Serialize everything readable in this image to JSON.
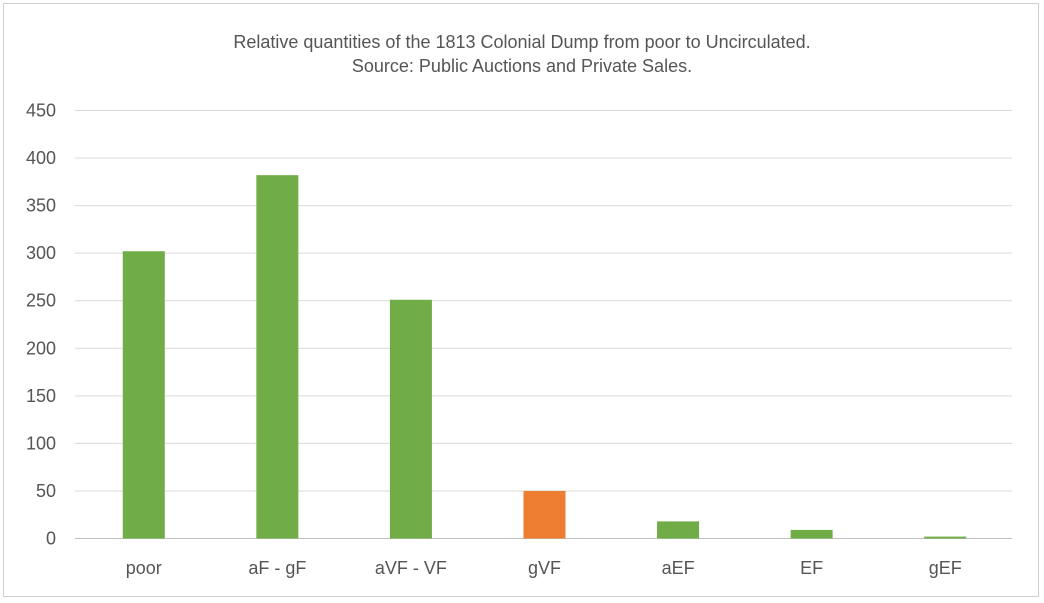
{
  "chart_data": {
    "type": "bar",
    "title": "Relative quantities of the 1813 Colonial Dump from poor to Uncirculated.",
    "subtitle": "Source: Public Auctions and Private Sales.",
    "categories": [
      "poor",
      "aF - gF",
      "aVF - VF",
      "gVF",
      "aEF",
      "EF",
      "gEF"
    ],
    "values": [
      302,
      382,
      251,
      50,
      18,
      9,
      2
    ],
    "colors": [
      "#70ad47",
      "#70ad47",
      "#70ad47",
      "#ed7d31",
      "#70ad47",
      "#70ad47",
      "#70ad47"
    ],
    "yticks": [
      0,
      50,
      100,
      150,
      200,
      250,
      300,
      350,
      400,
      450
    ],
    "ylim": [
      0,
      450
    ],
    "grid": true,
    "legend": "none"
  }
}
